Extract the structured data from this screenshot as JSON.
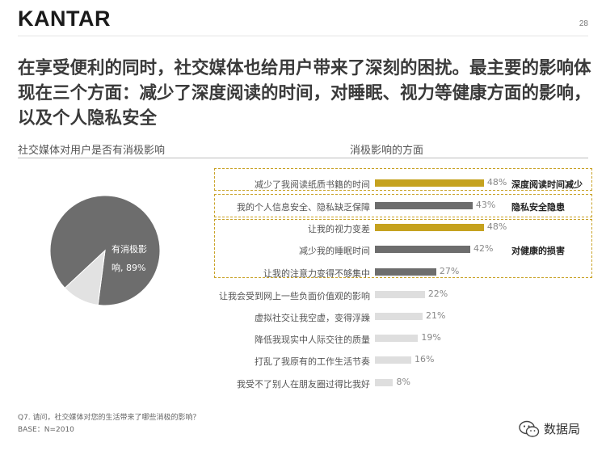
{
  "header": {
    "logo": "KANTAR",
    "page_number": "28"
  },
  "headline": "在享受便利的同时，社交媒体也给用户带来了深刻的困扰。最主要的影响体现在三个方面：减少了深度阅读的时间，对睡眠、视力等健康方面的影响，以及个人隐私安全",
  "subtitles": {
    "left": "社交媒体对用户是否有消极影响",
    "right": "消极影响的方面"
  },
  "colors": {
    "gold": "#c5a21f",
    "dark_gray": "#6d6d6d",
    "light_gray": "#dedede",
    "pie_gray": "#6d6d6d",
    "pie_light": "#e2e2e2"
  },
  "chart_data": [
    {
      "type": "pie",
      "title": "社交媒体对用户是否有消极影响",
      "slices": [
        {
          "label": "有消极影响，89%",
          "label_line1": "有消极影",
          "label_line2": "响, 89%",
          "value": 89,
          "color": "#6d6d6d"
        },
        {
          "label": "",
          "value": 11,
          "color": "#e2e2e2"
        }
      ]
    },
    {
      "type": "bar",
      "orientation": "horizontal",
      "title": "消极影响的方面",
      "xlim": [
        0,
        100
      ],
      "categories": [
        "减少了我阅读纸质书籍的时间",
        "我的个人信息安全、隐私缺乏保障",
        "让我的视力变差",
        "减少我的睡眠时间",
        "让我的注意力变得不够集中",
        "让我会受到网上一些负面价值观的影响",
        "虚拟社交让我空虚，变得浮躁",
        "降低我现实中人际交往的质量",
        "打乱了我原有的工作生活节奏",
        "我受不了别人在朋友圈过得比我好"
      ],
      "values": [
        48,
        43,
        48,
        42,
        27,
        22,
        21,
        19,
        16,
        8
      ],
      "value_labels": [
        "48%",
        "43%",
        "48%",
        "42%",
        "27%",
        "22%",
        "21%",
        "19%",
        "16%",
        "8%"
      ],
      "bar_colors": [
        "#c5a21f",
        "#6d6d6d",
        "#c5a21f",
        "#6d6d6d",
        "#6d6d6d",
        "#dedede",
        "#dedede",
        "#dedede",
        "#dedede",
        "#dedede"
      ],
      "group_labels": [
        "深度阅读时间减少",
        "隐私安全隐患",
        "对健康的损害"
      ]
    }
  ],
  "footnote": {
    "question": "Q7. 请问，社交媒体对您的生活带来了哪些消极的影响？",
    "base": "BASE：N=2010"
  },
  "brand": {
    "icon": "wechat-icon",
    "text": "数据局"
  }
}
